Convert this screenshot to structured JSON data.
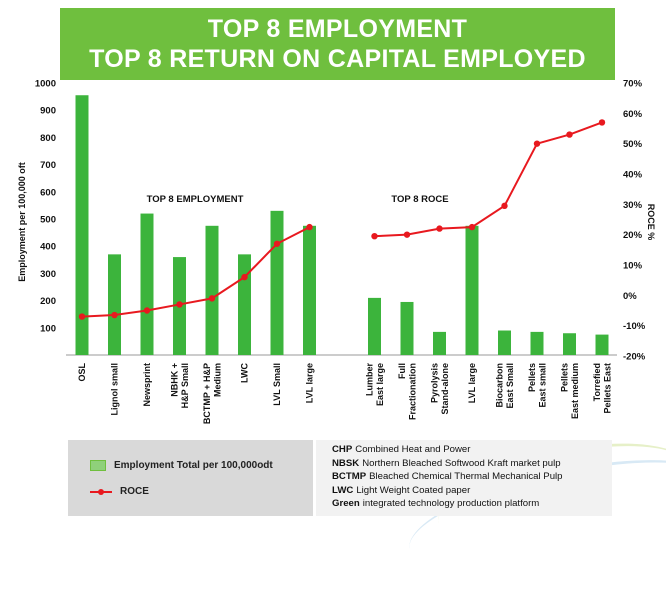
{
  "title": {
    "line1": "TOP 8 EMPLOYMENT",
    "line2": "TOP 8 RETURN ON CAPITAL EMPLOYED"
  },
  "chart_data": {
    "type": "bar",
    "categories": [
      "OSL",
      "Lignol small",
      "Newsprint",
      "NBHK + H&P Small",
      "BCTMP + H&P Medium",
      "LWC",
      "LVL  Small",
      "LVL large",
      "",
      "Lumber East large",
      "Full Fractionation",
      "Pyrolysis Stand-alone",
      "LVL large",
      "Biocarbon East Small",
      "Pellets East small",
      "Pellets East medium",
      "Torrefied Pellets East"
    ],
    "category_lines": [
      [
        "OSL"
      ],
      [
        "Lignol small"
      ],
      [
        "Newsprint"
      ],
      [
        "NBHK +",
        "H&P Small"
      ],
      [
        "BCTMP + H&P",
        "Medium"
      ],
      [
        "LWC"
      ],
      [
        "LVL  Small"
      ],
      [
        "LVL large"
      ],
      [],
      [
        "Lumber",
        "East large"
      ],
      [
        "Full",
        "Fractionation"
      ],
      [
        "Pyrolysis",
        "Stand-alone"
      ],
      [
        "LVL large"
      ],
      [
        "Biocarbon",
        "East Small"
      ],
      [
        "Pellets",
        "East small"
      ],
      [
        "Pellets",
        "East medium"
      ],
      [
        "Torrefied",
        "Pellets East"
      ]
    ],
    "series": [
      {
        "name": "Employment Total per 100,000odt",
        "kind": "bar",
        "axis": "left",
        "color": "#3cb43c",
        "values": [
          955,
          370,
          520,
          360,
          475,
          370,
          530,
          475,
          null,
          210,
          195,
          85,
          475,
          90,
          85,
          80,
          75
        ]
      },
      {
        "name": "ROCE",
        "kind": "line",
        "axis": "right",
        "color": "#e8191f",
        "segments": [
          {
            "start": 0,
            "values": [
              -7,
              -6.5,
              -5,
              -3,
              -1,
              6,
              17,
              22.5
            ]
          },
          {
            "start": 9,
            "values": [
              19.5,
              20,
              22,
              22.5,
              29.5,
              50,
              53,
              57
            ]
          }
        ]
      }
    ],
    "ylabel_left": "Employment per 100,000 oft",
    "ylabel_right": "ROCE %",
    "ylim_left": [
      0,
      1000
    ],
    "yticks_left": [
      100,
      200,
      300,
      400,
      500,
      600,
      700,
      800,
      900,
      1000
    ],
    "ylim_right": [
      -20,
      70
    ],
    "yticks_right": [
      "70%",
      "60%",
      "50%",
      "40%",
      "30%",
      "20%",
      "10%",
      "0%",
      "-10%",
      "-20%"
    ],
    "annotations": [
      {
        "text": "TOP 8 EMPLOYMENT",
        "group": "left"
      },
      {
        "text": "TOP 8 ROCE",
        "group": "right"
      }
    ],
    "grid": false
  },
  "legend": {
    "employment": "Employment Total per 100,000odt",
    "roce": "ROCE"
  },
  "abbreviations": [
    {
      "key": "CHP",
      "text": "Combined Heat and Power"
    },
    {
      "key": "NBSK",
      "text": "Northern Bleached Softwood Kraft market pulp"
    },
    {
      "key": "BCTMP",
      "text": "Bleached Chemical Thermal Mechanical Pulp"
    },
    {
      "key": "LWC",
      "text": "Light Weight Coated paper"
    },
    {
      "key": "Green",
      "text": "integrated technology production platform"
    }
  ]
}
